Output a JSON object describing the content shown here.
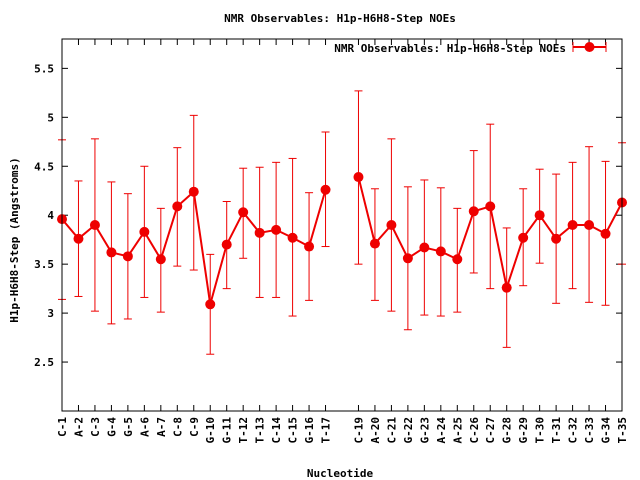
{
  "chart_data": {
    "type": "line",
    "title": "NMR Observables: H1p-H6H8-Step NOEs",
    "xlabel": "Nucleotide",
    "ylabel": "H1p-H6H8-Step (Angstroms)",
    "ylim": [
      2.0,
      5.8
    ],
    "yticks": [
      "2.5",
      "3",
      "3.5",
      "4",
      "4.5",
      "5",
      "5.5"
    ],
    "grid": false,
    "legend_position": "top-right",
    "series": [
      {
        "name": "NMR Observables: H1p-H6H8-Step NOEs",
        "color": "#ee0000",
        "points": [
          {
            "x": 1,
            "label": "C-1",
            "y": 3.96,
            "ylow": 3.14,
            "yhigh": 4.77
          },
          {
            "x": 2,
            "label": "A-2",
            "y": 3.76,
            "ylow": 3.17,
            "yhigh": 4.35
          },
          {
            "x": 3,
            "label": "C-3",
            "y": 3.9,
            "ylow": 3.02,
            "yhigh": 4.78
          },
          {
            "x": 4,
            "label": "G-4",
            "y": 3.62,
            "ylow": 2.89,
            "yhigh": 4.34
          },
          {
            "x": 5,
            "label": "G-5",
            "y": 3.58,
            "ylow": 2.94,
            "yhigh": 4.22
          },
          {
            "x": 6,
            "label": "A-6",
            "y": 3.83,
            "ylow": 3.16,
            "yhigh": 4.5
          },
          {
            "x": 7,
            "label": "A-7",
            "y": 3.55,
            "ylow": 3.01,
            "yhigh": 4.07
          },
          {
            "x": 8,
            "label": "C-8",
            "y": 4.09,
            "ylow": 3.48,
            "yhigh": 4.69
          },
          {
            "x": 9,
            "label": "C-9",
            "y": 4.24,
            "ylow": 3.44,
            "yhigh": 5.02
          },
          {
            "x": 10,
            "label": "G-10",
            "y": 3.09,
            "ylow": 2.58,
            "yhigh": 3.6
          },
          {
            "x": 11,
            "label": "G-11",
            "y": 3.7,
            "ylow": 3.25,
            "yhigh": 4.14
          },
          {
            "x": 12,
            "label": "T-12",
            "y": 4.03,
            "ylow": 3.56,
            "yhigh": 4.48
          },
          {
            "x": 13,
            "label": "T-13",
            "y": 3.82,
            "ylow": 3.16,
            "yhigh": 4.49
          },
          {
            "x": 14,
            "label": "C-14",
            "y": 3.85,
            "ylow": 3.16,
            "yhigh": 4.54
          },
          {
            "x": 15,
            "label": "C-15",
            "y": 3.77,
            "ylow": 2.97,
            "yhigh": 4.58
          },
          {
            "x": 16,
            "label": "G-16",
            "y": 3.68,
            "ylow": 3.13,
            "yhigh": 4.23
          },
          {
            "x": 17,
            "label": "T-17",
            "y": 4.26,
            "ylow": 3.68,
            "yhigh": 4.85
          },
          {
            "x": 19,
            "label": "C-19",
            "y": 4.39,
            "ylow": 3.5,
            "yhigh": 5.27
          },
          {
            "x": 20,
            "label": "A-20",
            "y": 3.71,
            "ylow": 3.13,
            "yhigh": 4.27
          },
          {
            "x": 21,
            "label": "C-21",
            "y": 3.9,
            "ylow": 3.02,
            "yhigh": 4.78
          },
          {
            "x": 22,
            "label": "G-22",
            "y": 3.56,
            "ylow": 2.83,
            "yhigh": 4.29
          },
          {
            "x": 23,
            "label": "G-23",
            "y": 3.67,
            "ylow": 2.98,
            "yhigh": 4.36
          },
          {
            "x": 24,
            "label": "A-24",
            "y": 3.63,
            "ylow": 2.97,
            "yhigh": 4.28
          },
          {
            "x": 25,
            "label": "A-25",
            "y": 3.55,
            "ylow": 3.01,
            "yhigh": 4.07
          },
          {
            "x": 26,
            "label": "C-26",
            "y": 4.04,
            "ylow": 3.41,
            "yhigh": 4.66
          },
          {
            "x": 27,
            "label": "C-27",
            "y": 4.09,
            "ylow": 3.25,
            "yhigh": 4.93
          },
          {
            "x": 28,
            "label": "G-28",
            "y": 3.26,
            "ylow": 2.65,
            "yhigh": 3.87
          },
          {
            "x": 29,
            "label": "G-29",
            "y": 3.77,
            "ylow": 3.28,
            "yhigh": 4.27
          },
          {
            "x": 30,
            "label": "T-30",
            "y": 4.0,
            "ylow": 3.51,
            "yhigh": 4.47
          },
          {
            "x": 31,
            "label": "T-31",
            "y": 3.76,
            "ylow": 3.1,
            "yhigh": 4.42
          },
          {
            "x": 32,
            "label": "C-32",
            "y": 3.9,
            "ylow": 3.25,
            "yhigh": 4.54
          },
          {
            "x": 33,
            "label": "C-33",
            "y": 3.9,
            "ylow": 3.11,
            "yhigh": 4.7
          },
          {
            "x": 34,
            "label": "G-34",
            "y": 3.81,
            "ylow": 3.08,
            "yhigh": 4.55
          },
          {
            "x": 35,
            "label": "T-35",
            "y": 4.13,
            "ylow": 3.5,
            "yhigh": 4.74
          }
        ]
      }
    ]
  }
}
